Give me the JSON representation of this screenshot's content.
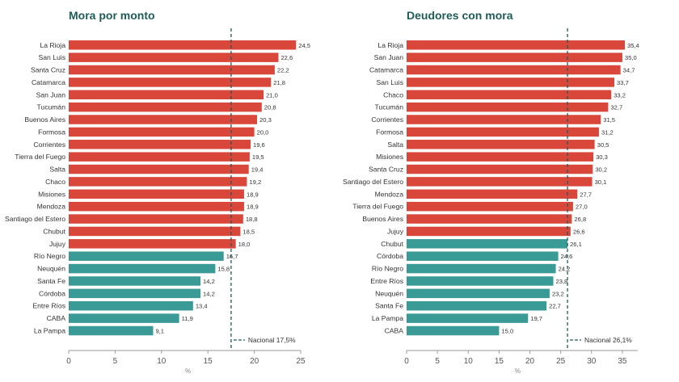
{
  "colors": {
    "above": "#d9473a",
    "below": "#3a9a95",
    "title": "#1f5c58",
    "reference": "#1f5c58"
  },
  "chart_data": [
    {
      "type": "bar",
      "orientation": "horizontal",
      "title": "Mora por monto",
      "xlabel": "%",
      "xlim": [
        0,
        25
      ],
      "xticks": [
        0,
        5,
        10,
        15,
        20,
        25
      ],
      "reference": {
        "value": 17.5,
        "label": "Nacional 17,5%"
      },
      "categories": [
        "La Rioja",
        "San Luis",
        "Santa Cruz",
        "Catamarca",
        "San Juan",
        "Tucumán",
        "Buenos Aires",
        "Formosa",
        "Corrientes",
        "Tierra del Fuego",
        "Salta",
        "Chaco",
        "Misiones",
        "Mendoza",
        "Santiago del Estero",
        "Chubut",
        "Jujuy",
        "Río Negro",
        "Neuquén",
        "Santa Fe",
        "Córdoba",
        "Entre Ríos",
        "CABA",
        "La Pampa"
      ],
      "values": [
        24.5,
        22.6,
        22.2,
        21.8,
        21.0,
        20.8,
        20.3,
        20.0,
        19.6,
        19.5,
        19.4,
        19.2,
        18.9,
        18.9,
        18.8,
        18.5,
        18.0,
        16.7,
        15.8,
        14.2,
        14.2,
        13.4,
        11.9,
        9.1
      ],
      "labels": [
        "24,5",
        "22,6",
        "22,2",
        "21,8",
        "21,0",
        "20,8",
        "20,3",
        "20,0",
        "19,6",
        "19,5",
        "19,4",
        "19,2",
        "18,9",
        "18,9",
        "18,8",
        "18,5",
        "18,0",
        "16,7",
        "15,8",
        "14,2",
        "14,2",
        "13,4",
        "11,9",
        "9,1"
      ]
    },
    {
      "type": "bar",
      "orientation": "horizontal",
      "title": "Deudores con mora",
      "xlabel": "%",
      "xlim": [
        0,
        37.5
      ],
      "xticks": [
        0,
        5,
        10,
        15,
        20,
        25,
        30,
        35
      ],
      "reference": {
        "value": 26.1,
        "label": "Nacional 26,1%"
      },
      "categories": [
        "La Rioja",
        "San Juan",
        "Catamarca",
        "San Luis",
        "Chaco",
        "Tucumán",
        "Corrientes",
        "Formosa",
        "Salta",
        "Misiones",
        "Santa Cruz",
        "Santiago del Estero",
        "Mendoza",
        "Tierra del Fuego",
        "Buenos Aires",
        "Jujuy",
        "Chubut",
        "Córdoba",
        "Río Negro",
        "Entre Ríos",
        "Neuquén",
        "Santa Fe",
        "La Pampa",
        "CABA"
      ],
      "values": [
        35.4,
        35.0,
        34.7,
        33.7,
        33.2,
        32.7,
        31.5,
        31.2,
        30.5,
        30.3,
        30.2,
        30.1,
        27.7,
        27.0,
        26.8,
        26.6,
        26.1,
        24.6,
        24.2,
        23.8,
        23.2,
        22.7,
        19.7,
        15.0
      ],
      "labels": [
        "35,4",
        "35,0",
        "34,7",
        "33,7",
        "33,2",
        "32,7",
        "31,5",
        "31,2",
        "30,5",
        "30,3",
        "30,2",
        "30,1",
        "27,7",
        "27,0",
        "26,8",
        "26,6",
        "26,1",
        "24,6",
        "24,2",
        "23,8",
        "23,2",
        "22,7",
        "19,7",
        "15,0"
      ]
    }
  ]
}
